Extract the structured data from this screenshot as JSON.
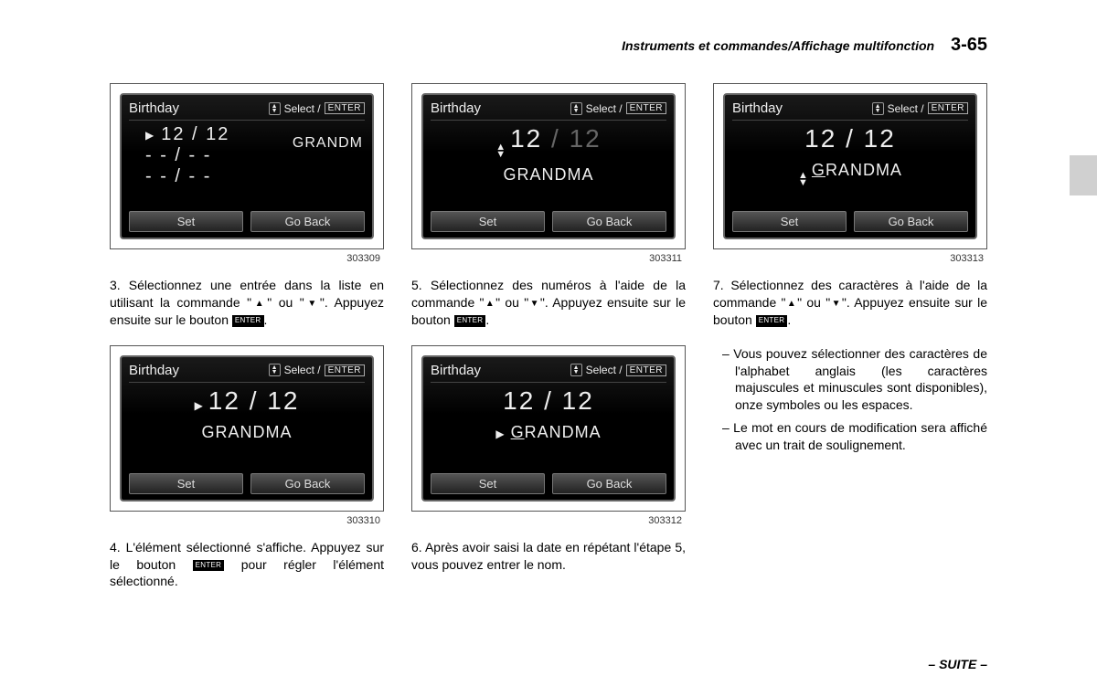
{
  "header": {
    "title": "Instruments et commandes/Affichage multifonction",
    "page": "3-65"
  },
  "screens": {
    "s1": {
      "title": "Birthday",
      "select": "Select /",
      "enter": "ENTER",
      "row1": "12  /  12",
      "row2": "- -   /   - -",
      "row3": "- -   /   - -",
      "sidelabel": "GRANDM",
      "set": "Set",
      "back": "Go Back",
      "figid": "303309"
    },
    "s2": {
      "title": "Birthday",
      "select": "Select /",
      "enter": "ENTER",
      "date": "12  /  12",
      "name": "GRANDMA",
      "set": "Set",
      "back": "Go Back",
      "figid": "303310"
    },
    "s3": {
      "title": "Birthday",
      "select": "Select /",
      "enter": "ENTER",
      "date_a": "12",
      "date_sep": "  /  ",
      "date_b": "12",
      "name": "GRANDMA",
      "set": "Set",
      "back": "Go Back",
      "figid": "303311"
    },
    "s4": {
      "title": "Birthday",
      "select": "Select /",
      "enter": "ENTER",
      "date": "12  /  12",
      "name_first": "G",
      "name_rest": "RANDMA",
      "set": "Set",
      "back": "Go Back",
      "figid": "303312"
    },
    "s5": {
      "title": "Birthday",
      "select": "Select /",
      "enter": "ENTER",
      "date": "12  /  12",
      "name_first": "G",
      "name_rest": "RANDMA",
      "set": "Set",
      "back": "Go Back",
      "figid": "303313"
    }
  },
  "captions": {
    "c3a": "3.  Sélectionnez une entrée dans la liste en utilisant la commande \"",
    "c3b": "\" ou \"",
    "c3c": "\". Appuyez ensuite sur le bouton ",
    "c3d": ".",
    "c4": "4.  L'élément sélectionné s'affiche. Appuyez sur le bouton ",
    "c4b": " pour régler l'élément sélectionné.",
    "c5a": "5.  Sélectionnez des numéros à l'aide de la commande \"",
    "c5b": "\" ou \"",
    "c5c": "\". Appuyez ensuite sur le bouton ",
    "c5d": ".",
    "c6": "6.  Après avoir saisi la date en répétant l'étape 5, vous pouvez entrer le nom.",
    "c7a": "7.  Sélectionnez des caractères à l'aide de la commande \"",
    "c7b": "\" ou \"",
    "c7c": "\". Appuyez ensuite sur le bouton ",
    "c7d": ".",
    "sub1": "–  Vous pouvez sélectionner des caractères de l'alphabet anglais (les caractères majuscules et minuscules sont disponibles), onze symboles ou les espaces.",
    "sub2": "–  Le mot en cours de modification sera affiché avec un trait de soulignement."
  },
  "enter_small": "ENTER",
  "suite": "– SUITE –"
}
